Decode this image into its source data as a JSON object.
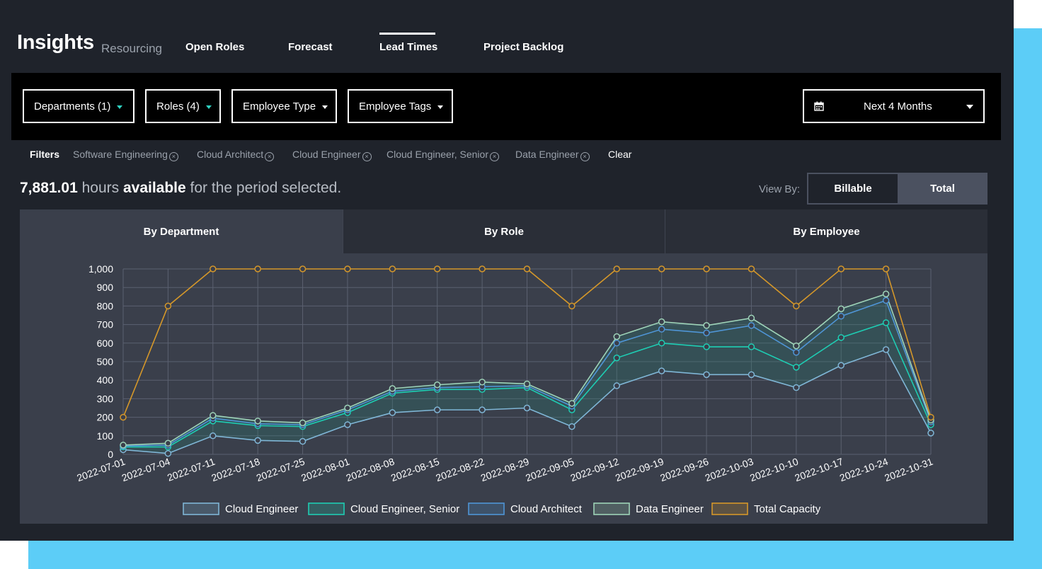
{
  "brand": {
    "title": "Insights",
    "subtitle": "Resourcing"
  },
  "nav": {
    "tabs": [
      "Open Roles",
      "Forecast",
      "Lead Times",
      "Project Backlog"
    ],
    "active": "Lead Times"
  },
  "toolbar": {
    "departments": "Departments (1)",
    "roles": "Roles (4)",
    "employee_type": "Employee Type",
    "employee_tags": "Employee Tags",
    "period": "Next 4 Months"
  },
  "filters": {
    "label": "Filters",
    "chips": [
      "Software Engineering",
      "Cloud Architect",
      "Cloud Engineer",
      "Cloud Engineer, Senior",
      "Data Engineer"
    ],
    "clear": "Clear"
  },
  "summary": {
    "hours": "7,881.01",
    "text1": "hours",
    "text2": "available",
    "text3": "for the period selected."
  },
  "view_by": {
    "label": "View By:",
    "options": [
      "Billable",
      "Total"
    ],
    "selected": "Billable"
  },
  "panel_tabs": {
    "items": [
      "By Department",
      "By Role",
      "By Employee"
    ],
    "active": "By Department"
  },
  "colors": {
    "app_bg": "#1f232b",
    "accent": "#5ccdf7",
    "cloud_engineer": "#7fb6d6",
    "cloud_engineer_senior": "#1ecdb3",
    "cloud_architect": "#4f95d6",
    "data_engineer": "#9ed3b8",
    "total_capacity": "#d4972a"
  },
  "chart_data": {
    "type": "line",
    "x": [
      "2022-07-01",
      "2022-07-04",
      "2022-07-11",
      "2022-07-18",
      "2022-07-25",
      "2022-08-01",
      "2022-08-08",
      "2022-08-15",
      "2022-08-22",
      "2022-08-29",
      "2022-09-05",
      "2022-09-12",
      "2022-09-19",
      "2022-09-26",
      "2022-10-03",
      "2022-10-10",
      "2022-10-17",
      "2022-10-24",
      "2022-10-31"
    ],
    "yticks": [
      "0",
      "100",
      "200",
      "300",
      "400",
      "500",
      "600",
      "700",
      "800",
      "900",
      "1,000"
    ],
    "ylim": [
      0,
      1000
    ],
    "grid": true,
    "legend": "bottom",
    "series": [
      {
        "name": "Cloud Engineer",
        "values": [
          25,
          5,
          100,
          75,
          70,
          160,
          225,
          240,
          240,
          250,
          150,
          370,
          450,
          430,
          430,
          360,
          480,
          565,
          115
        ]
      },
      {
        "name": "Cloud Engineer, Senior",
        "values": [
          40,
          40,
          180,
          155,
          150,
          225,
          330,
          350,
          350,
          360,
          240,
          520,
          600,
          580,
          580,
          470,
          630,
          710,
          160
        ]
      },
      {
        "name": "Cloud Architect",
        "values": [
          45,
          50,
          195,
          165,
          160,
          240,
          340,
          360,
          365,
          370,
          260,
          600,
          675,
          655,
          695,
          550,
          745,
          830,
          175
        ]
      },
      {
        "name": "Data Engineer",
        "values": [
          50,
          60,
          210,
          180,
          170,
          250,
          355,
          375,
          390,
          380,
          275,
          635,
          715,
          695,
          735,
          585,
          785,
          865,
          185
        ]
      },
      {
        "name": "Total Capacity",
        "values": [
          200,
          800,
          1000,
          1000,
          1000,
          1000,
          1000,
          1000,
          1000,
          1000,
          800,
          1000,
          1000,
          1000,
          1000,
          800,
          1000,
          1000,
          200
        ]
      }
    ]
  }
}
